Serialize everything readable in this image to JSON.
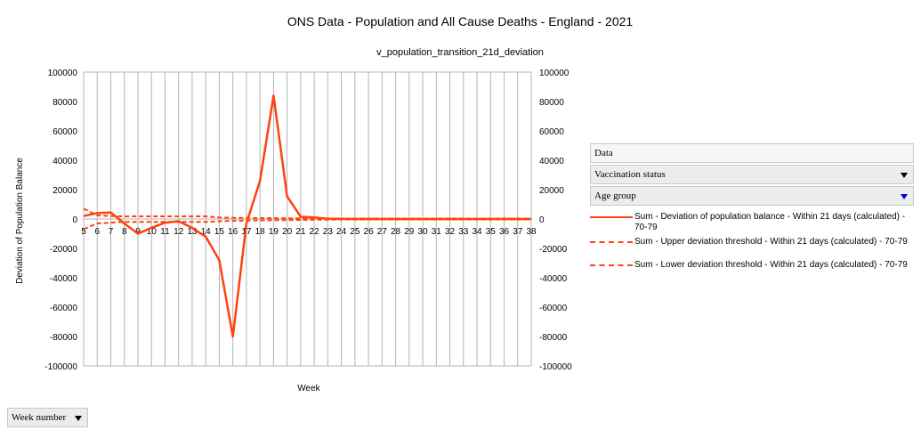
{
  "chart_data": {
    "type": "line",
    "title": "ONS Data - Population and All Cause Deaths - England - 2021",
    "subtitle": "v_population_transition_21d_deviation",
    "xlabel": "Week",
    "ylabel": "Deviation of Population Balance",
    "ylim": [
      -100000,
      100000
    ],
    "yticks": [
      "100000",
      "80000",
      "60000",
      "40000",
      "20000",
      "0",
      "-20000",
      "-40000",
      "-60000",
      "-80000",
      "-100000"
    ],
    "categories": [
      "5",
      "6",
      "7",
      "8",
      "9",
      "10",
      "11",
      "12",
      "13",
      "14",
      "15",
      "16",
      "17",
      "18",
      "19",
      "20",
      "21",
      "22",
      "23",
      "24",
      "25",
      "26",
      "27",
      "28",
      "29",
      "30",
      "31",
      "32",
      "33",
      "34",
      "35",
      "36",
      "37",
      "38"
    ],
    "grid": true,
    "legend_position": "right",
    "series": [
      {
        "name": "Sum - Deviation of population balance - Within 21 days (calculated) - 70-79",
        "style": "solid",
        "values": [
          2000,
          4000,
          4500,
          -3000,
          -10000,
          -6000,
          -2500,
          -1500,
          -6000,
          -12000,
          -28000,
          -80000,
          -3000,
          26000,
          84000,
          15500,
          1500,
          1000,
          200,
          100,
          0,
          0,
          0,
          0,
          0,
          0,
          0,
          0,
          0,
          0,
          0,
          0,
          0,
          0
        ]
      },
      {
        "name": "Sum - Upper deviation threshold - Within 21 days (calculated) - 70-79",
        "style": "dashed",
        "values": [
          7000,
          2500,
          2000,
          1800,
          1800,
          1800,
          1800,
          1800,
          1800,
          1800,
          1000,
          800,
          700,
          600,
          600,
          500,
          500,
          400,
          300,
          300,
          300,
          300,
          300,
          300,
          300,
          300,
          300,
          300,
          300,
          300,
          300,
          300,
          300,
          300
        ]
      },
      {
        "name": "Sum - Lower deviation threshold - Within 21 days (calculated) - 70-79",
        "style": "dashed",
        "values": [
          -7000,
          -3000,
          -2500,
          -2000,
          -2000,
          -2000,
          -2000,
          -2000,
          -2000,
          -2000,
          -1500,
          -1200,
          -1000,
          -900,
          -800,
          -700,
          -600,
          -500,
          -400,
          -300,
          -300,
          -300,
          -300,
          -300,
          -300,
          -300,
          -300,
          -300,
          -300,
          -300,
          -300,
          -300,
          -300,
          -300
        ]
      }
    ]
  },
  "colors": {
    "series": "#ff420e",
    "grid": "#b3b3b3"
  },
  "fields": {
    "data_label": "Data",
    "vaccination_label": "Vaccination status",
    "age_group_label": "Age group",
    "week_number_label": "Week number"
  }
}
